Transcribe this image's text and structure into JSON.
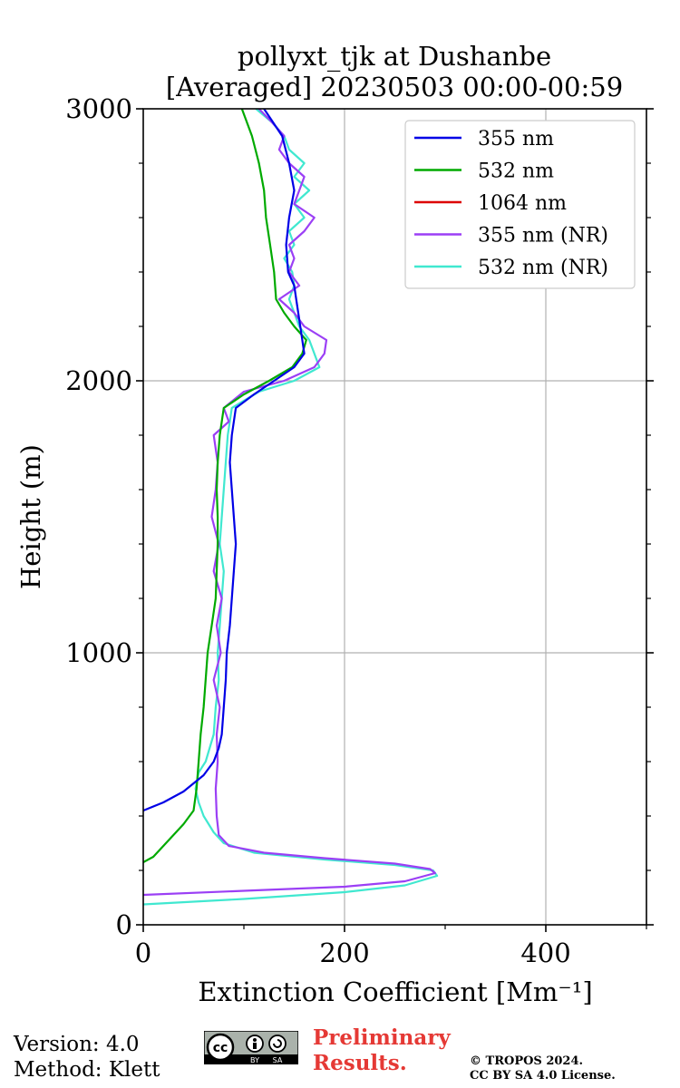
{
  "chart_data": {
    "type": "line",
    "title_line1": "pollyxt_tjk at Dushanbe",
    "title_line2": "[Averaged] 20230503 00:00-00:59",
    "xlabel": "Extinction Coefficient [Mm⁻¹]",
    "ylabel": "Height (m)",
    "xlim": [
      0,
      500
    ],
    "ylim": [
      0,
      3000
    ],
    "xticks": [
      0,
      200,
      400
    ],
    "yticks": [
      0,
      1000,
      2000,
      3000
    ],
    "x_minor_step": 100,
    "y_minor_step": 200,
    "grid": true,
    "legend_position": "top-right",
    "series": [
      {
        "name": "355 nm",
        "color": "#0000e6",
        "points": [
          [
            0,
            420
          ],
          [
            20,
            450
          ],
          [
            40,
            490
          ],
          [
            60,
            550
          ],
          [
            70,
            600
          ],
          [
            75,
            650
          ],
          [
            78,
            700
          ],
          [
            80,
            800
          ],
          [
            82,
            900
          ],
          [
            83,
            1000
          ],
          [
            86,
            1100
          ],
          [
            88,
            1200
          ],
          [
            90,
            1300
          ],
          [
            92,
            1400
          ],
          [
            90,
            1500
          ],
          [
            88,
            1600
          ],
          [
            86,
            1700
          ],
          [
            88,
            1800
          ],
          [
            92,
            1900
          ],
          [
            110,
            1950
          ],
          [
            130,
            2000
          ],
          [
            150,
            2050
          ],
          [
            160,
            2100
          ],
          [
            158,
            2150
          ],
          [
            156,
            2200
          ],
          [
            152,
            2300
          ],
          [
            150,
            2350
          ],
          [
            144,
            2400
          ],
          [
            142,
            2500
          ],
          [
            145,
            2600
          ],
          [
            150,
            2700
          ],
          [
            145,
            2800
          ],
          [
            138,
            2900
          ],
          [
            120,
            3000
          ]
        ]
      },
      {
        "name": "532 nm",
        "color": "#00aa00",
        "points": [
          [
            0,
            230
          ],
          [
            10,
            250
          ],
          [
            20,
            290
          ],
          [
            30,
            330
          ],
          [
            40,
            370
          ],
          [
            50,
            420
          ],
          [
            53,
            500
          ],
          [
            55,
            600
          ],
          [
            57,
            700
          ],
          [
            60,
            800
          ],
          [
            62,
            900
          ],
          [
            64,
            1000
          ],
          [
            68,
            1100
          ],
          [
            72,
            1200
          ],
          [
            73,
            1300
          ],
          [
            74,
            1400
          ],
          [
            74,
            1500
          ],
          [
            73,
            1600
          ],
          [
            74,
            1700
          ],
          [
            76,
            1800
          ],
          [
            80,
            1900
          ],
          [
            100,
            1950
          ],
          [
            125,
            2000
          ],
          [
            148,
            2050
          ],
          [
            158,
            2100
          ],
          [
            162,
            2150
          ],
          [
            150,
            2200
          ],
          [
            140,
            2250
          ],
          [
            132,
            2300
          ],
          [
            130,
            2400
          ],
          [
            126,
            2500
          ],
          [
            122,
            2600
          ],
          [
            120,
            2700
          ],
          [
            115,
            2800
          ],
          [
            108,
            2900
          ],
          [
            98,
            3000
          ]
        ]
      },
      {
        "name": "1064 nm",
        "color": "#dd0000",
        "points": []
      },
      {
        "name": "355 nm (NR)",
        "color": "#9b3ff5",
        "points": [
          [
            0,
            110
          ],
          [
            100,
            125
          ],
          [
            200,
            140
          ],
          [
            260,
            160
          ],
          [
            290,
            190
          ],
          [
            285,
            205
          ],
          [
            250,
            225
          ],
          [
            180,
            245
          ],
          [
            120,
            265
          ],
          [
            85,
            290
          ],
          [
            75,
            330
          ],
          [
            73,
            400
          ],
          [
            72,
            500
          ],
          [
            74,
            600
          ],
          [
            73,
            700
          ],
          [
            76,
            800
          ],
          [
            70,
            900
          ],
          [
            77,
            1000
          ],
          [
            73,
            1100
          ],
          [
            78,
            1200
          ],
          [
            70,
            1300
          ],
          [
            75,
            1400
          ],
          [
            68,
            1500
          ],
          [
            72,
            1600
          ],
          [
            74,
            1700
          ],
          [
            70,
            1800
          ],
          [
            85,
            1850
          ],
          [
            80,
            1900
          ],
          [
            100,
            1960
          ],
          [
            140,
            2000
          ],
          [
            170,
            2050
          ],
          [
            180,
            2100
          ],
          [
            182,
            2150
          ],
          [
            160,
            2200
          ],
          [
            150,
            2250
          ],
          [
            135,
            2300
          ],
          [
            155,
            2350
          ],
          [
            145,
            2400
          ],
          [
            150,
            2450
          ],
          [
            145,
            2500
          ],
          [
            160,
            2550
          ],
          [
            170,
            2600
          ],
          [
            150,
            2650
          ],
          [
            155,
            2700
          ],
          [
            160,
            2750
          ],
          [
            145,
            2800
          ],
          [
            135,
            2850
          ],
          [
            140,
            2900
          ],
          [
            128,
            2950
          ],
          [
            115,
            3000
          ]
        ]
      },
      {
        "name": "532 nm (NR)",
        "color": "#40e8d0",
        "points": [
          [
            0,
            75
          ],
          [
            100,
            95
          ],
          [
            200,
            120
          ],
          [
            260,
            145
          ],
          [
            292,
            180
          ],
          [
            288,
            200
          ],
          [
            250,
            220
          ],
          [
            180,
            240
          ],
          [
            110,
            265
          ],
          [
            80,
            300
          ],
          [
            70,
            340
          ],
          [
            60,
            400
          ],
          [
            55,
            450
          ],
          [
            52,
            500
          ],
          [
            55,
            560
          ],
          [
            62,
            600
          ],
          [
            70,
            700
          ],
          [
            72,
            800
          ],
          [
            75,
            900
          ],
          [
            74,
            1000
          ],
          [
            76,
            1100
          ],
          [
            78,
            1200
          ],
          [
            80,
            1300
          ],
          [
            76,
            1400
          ],
          [
            78,
            1500
          ],
          [
            80,
            1600
          ],
          [
            82,
            1700
          ],
          [
            84,
            1800
          ],
          [
            88,
            1900
          ],
          [
            115,
            1960
          ],
          [
            150,
            2000
          ],
          [
            175,
            2050
          ],
          [
            170,
            2100
          ],
          [
            165,
            2150
          ],
          [
            155,
            2200
          ],
          [
            145,
            2300
          ],
          [
            150,
            2350
          ],
          [
            148,
            2400
          ],
          [
            140,
            2450
          ],
          [
            150,
            2500
          ],
          [
            145,
            2550
          ],
          [
            160,
            2600
          ],
          [
            150,
            2650
          ],
          [
            165,
            2700
          ],
          [
            150,
            2750
          ],
          [
            160,
            2800
          ],
          [
            145,
            2850
          ],
          [
            140,
            2900
          ],
          [
            128,
            2950
          ],
          [
            112,
            3000
          ]
        ]
      }
    ]
  },
  "footer": {
    "version": "Version: 4.0",
    "method": "Method: Klett",
    "preliminary_line1": "Preliminary",
    "preliminary_line2": "Results.",
    "copyright_line1": "© TROPOS 2024.",
    "copyright_line2": "CC BY SA 4.0 License.",
    "badge_by": "BY",
    "badge_sa": "SA",
    "badge_cc": "cc"
  }
}
